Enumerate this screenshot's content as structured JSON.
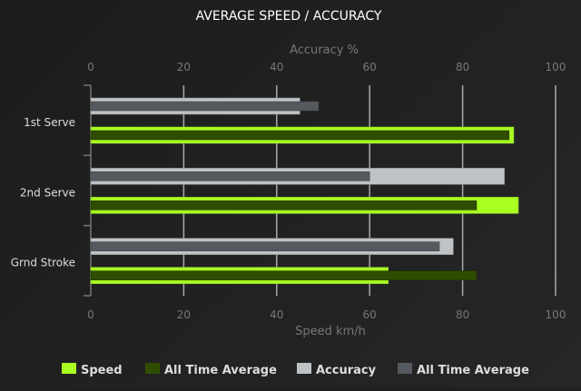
{
  "chart_data": {
    "type": "bar",
    "orientation": "horizontal",
    "title": "AVERAGE SPEED / ACCURACY",
    "top_axis_label": "Accuracy %",
    "bottom_axis_label": "Speed km/h",
    "xlim": [
      0,
      100
    ],
    "ticks": [
      "0",
      "20",
      "40",
      "60",
      "80",
      "100"
    ],
    "grid": true,
    "legend_placement": "bottom",
    "categories": [
      "1st Serve",
      "2nd Serve",
      "Grnd Stroke"
    ],
    "series": [
      {
        "name": "Speed",
        "color": "#aaff22",
        "values": [
          91,
          92,
          64
        ]
      },
      {
        "name": "All Time Average",
        "color": "#2f4d00",
        "values": [
          90,
          83,
          83
        ]
      },
      {
        "name": "Accuracy",
        "color": "#bfc3c5",
        "values": [
          45,
          89,
          78
        ]
      },
      {
        "name": "All Time Average",
        "color": "#555a60",
        "values": [
          49,
          60,
          75
        ]
      }
    ]
  }
}
